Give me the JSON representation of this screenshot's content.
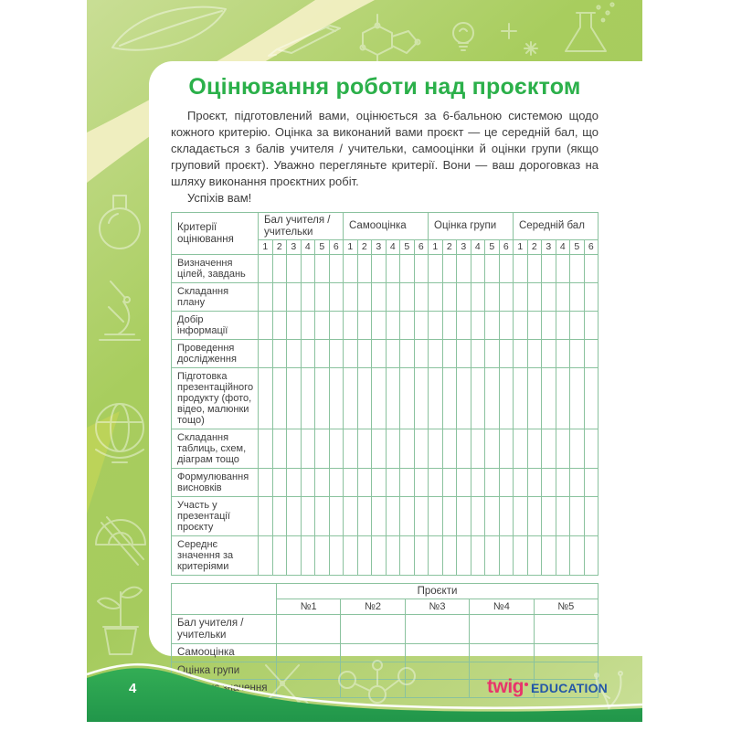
{
  "header": {
    "title": "Оцінювання роботи над проєктом"
  },
  "intro": {
    "text": "Проєкт, підготовлений вами, оцінюється за 6-бальною системою щодо кожного критерію. Оцінка за виконаний вами проєкт — це середній бал, що складається з балів учителя / учительки, самооцінки й оцінки групи (якщо груповий проєкт). Уважно перегляньте критерії. Вони — ваш дороговказ на шляху виконання проєктних робіт.",
    "wish": "Успіхів вам!"
  },
  "criteria_table": {
    "criteria_header": "Критерії оцінювання",
    "score_groups": [
      "Бал учителя / учительки",
      "Самооцінка",
      "Оцінка групи",
      "Середній бал"
    ],
    "scale": [
      "1",
      "2",
      "3",
      "4",
      "5",
      "6"
    ],
    "criteria_rows": [
      "Визначення цілей, завдань",
      "Складання плану",
      "Добір інформації",
      "Проведення дослідження",
      "Підготовка презентацій­ного продукту (фото, відео, малюнки тощо)",
      "Складання таблиць, схем, діаграм тощо",
      "Формулювання висновків",
      "Участь у презентації проєкту",
      "Середнє значення за критеріями"
    ]
  },
  "projects_table": {
    "group_header": "Проєкти",
    "project_columns": [
      "№1",
      "№2",
      "№3",
      "№4",
      "№5"
    ],
    "row_labels": [
      "Бал учителя / учительки",
      "Самооцінка",
      "Оцінка групи",
      "Середнє значення"
    ]
  },
  "footer": {
    "page_number": "4",
    "logo_twig": "twig",
    "logo_education": "EDUCATION"
  },
  "colors": {
    "accent_green": "#2bb04a",
    "table_border": "#8ac29e",
    "band_light": "#c9de95",
    "band_green": "#a8cd5e",
    "wave_green": "#28a04a",
    "cream": "#f3f0c4",
    "logo_pink": "#e8356b",
    "logo_blue": "#2457a7",
    "text_ink": "#3e3e3e"
  }
}
